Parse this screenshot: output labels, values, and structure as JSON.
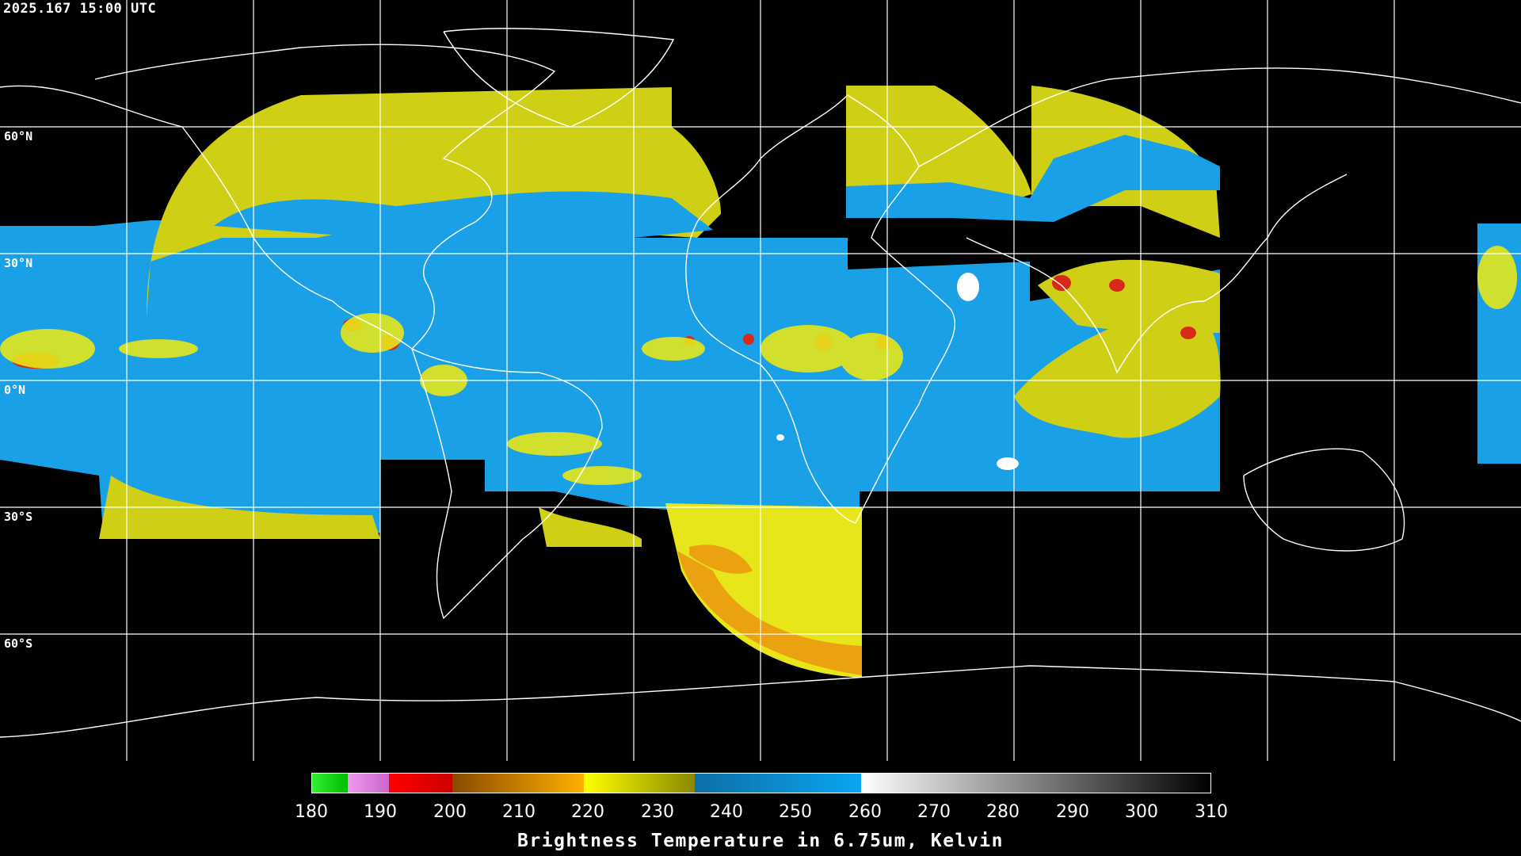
{
  "timestamp": "2025.167 15:00 UTC",
  "lat_labels": [
    "60°N",
    "30°N",
    "0°N",
    "30°S",
    "60°S"
  ],
  "legend": {
    "title": "Brightness Temperature in 6.75um, Kelvin",
    "ticks": [
      "180",
      "190",
      "200",
      "210",
      "220",
      "230",
      "240",
      "250",
      "260",
      "270",
      "280",
      "290",
      "300",
      "310"
    ],
    "range_k": [
      180,
      310
    ]
  },
  "colors": {
    "background": "#000000",
    "grid": "#ffffff",
    "coastline": "#ffffff",
    "cold_green": "#22dd22",
    "pink": "#ee88ee",
    "red": "#ee0000",
    "orange": "#e89a10",
    "yellow": "#e6e61a",
    "olive_yellow": "#c8c800",
    "blue": "#1a9ee0",
    "white": "#ffffff"
  }
}
